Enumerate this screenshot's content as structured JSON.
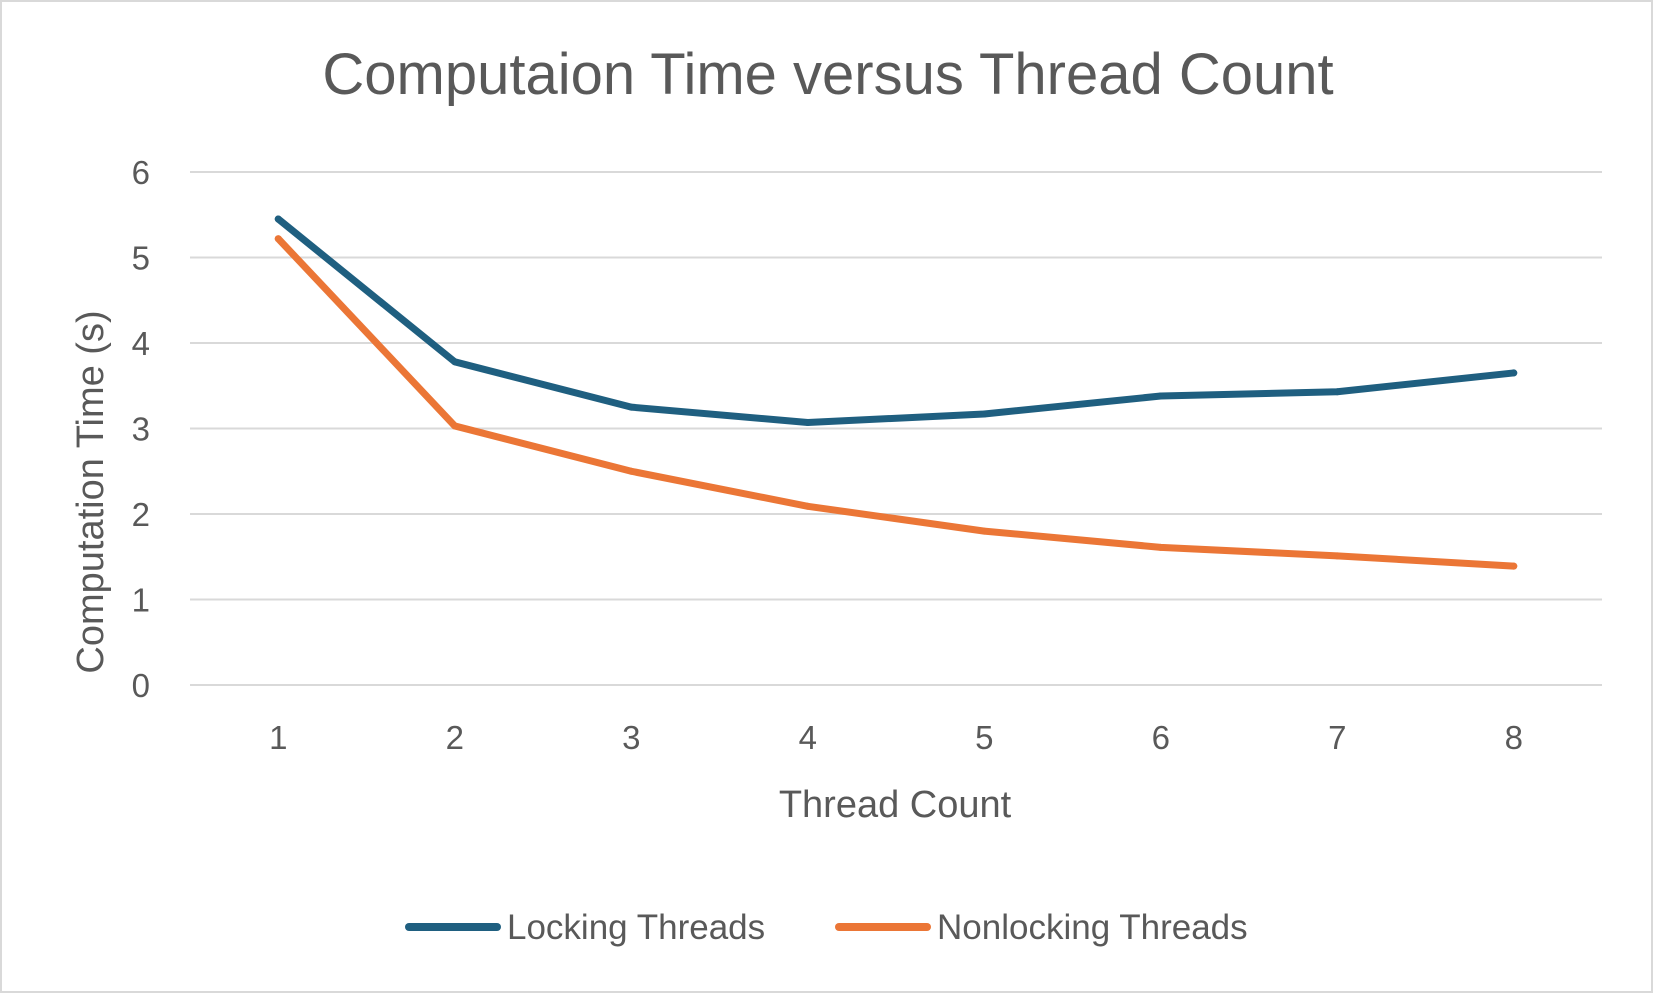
{
  "chart_data": {
    "type": "line",
    "title": "Computaion Time versus Thread Count",
    "xlabel": "Thread Count",
    "ylabel": "Computation Time (s)",
    "x": [
      1,
      2,
      3,
      4,
      5,
      6,
      7,
      8
    ],
    "ylim": [
      0,
      6
    ],
    "yticks": [
      0,
      1,
      2,
      3,
      4,
      5,
      6
    ],
    "grid": true,
    "legend_position": "bottom",
    "series": [
      {
        "name": "Locking Threads",
        "color": "#1f5f80",
        "values": [
          5.45,
          3.78,
          3.25,
          3.07,
          3.17,
          3.38,
          3.43,
          3.65
        ]
      },
      {
        "name": "Nonlocking Threads",
        "color": "#eb7636",
        "values": [
          5.22,
          3.03,
          2.5,
          2.09,
          1.8,
          1.61,
          1.51,
          1.39
        ]
      }
    ]
  }
}
